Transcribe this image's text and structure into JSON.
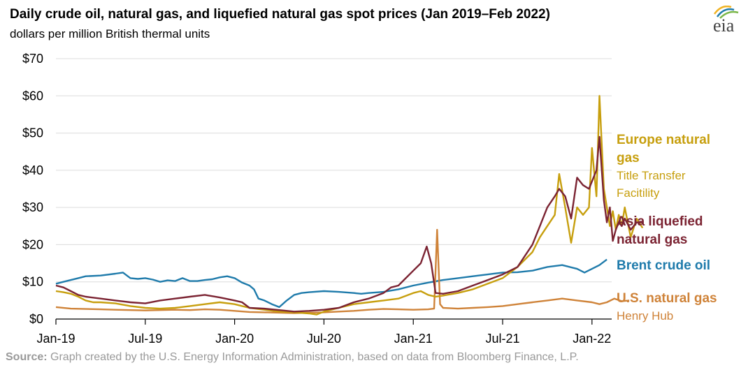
{
  "header": {
    "title": "Daily crude oil, natural gas, and liquefied natural gas spot prices (Jan 2019–Feb 2022)",
    "subtitle": "dollars per million British thermal units"
  },
  "logo": {
    "text": "eia",
    "icon": "eia-logo-icon"
  },
  "source": {
    "label": "Source:",
    "text": "Graph created by the U.S. Energy Information Administration, based on data from Bloomberg Finance, L.P."
  },
  "chart_data": {
    "type": "line",
    "title": "Daily crude oil, natural gas, and liquefied natural gas spot prices (Jan 2019–Feb 2022)",
    "ylabel": "dollars per million British thermal units",
    "xlim": [
      0,
      37.3
    ],
    "ylim": [
      0,
      70
    ],
    "y_ticks": [
      0,
      10,
      20,
      30,
      40,
      50,
      60,
      70
    ],
    "y_tick_labels": [
      "$0",
      "$10",
      "$20",
      "$30",
      "$40",
      "$50",
      "$60",
      "$70"
    ],
    "x_tick_positions": [
      0,
      6,
      12,
      18,
      24,
      30,
      36
    ],
    "x_tick_labels": [
      "Jan-19",
      "Jul-19",
      "Jan-20",
      "Jul-20",
      "Jan-21",
      "Jul-21",
      "Jan-22"
    ],
    "x_units": "months since Jan 2019",
    "grid": "horizontal",
    "series": [
      {
        "name": "Brent crude oil",
        "color": "#1f7bab",
        "labels": [
          "Brent crude oil"
        ],
        "points": [
          [
            0,
            9.5
          ],
          [
            0.5,
            10.0
          ],
          [
            1,
            10.5
          ],
          [
            1.5,
            11.0
          ],
          [
            2,
            11.5
          ],
          [
            3,
            11.7
          ],
          [
            4,
            12.2
          ],
          [
            4.5,
            12.5
          ],
          [
            5,
            11.0
          ],
          [
            5.5,
            10.8
          ],
          [
            6,
            11.0
          ],
          [
            6.5,
            10.6
          ],
          [
            7,
            10.0
          ],
          [
            7.5,
            10.4
          ],
          [
            8,
            10.2
          ],
          [
            8.5,
            11.0
          ],
          [
            9,
            10.2
          ],
          [
            9.5,
            10.2
          ],
          [
            10,
            10.5
          ],
          [
            10.5,
            10.7
          ],
          [
            11,
            11.2
          ],
          [
            11.5,
            11.5
          ],
          [
            12,
            11.0
          ],
          [
            12.5,
            9.8
          ],
          [
            13,
            9.0
          ],
          [
            13.3,
            8.0
          ],
          [
            13.6,
            5.5
          ],
          [
            14,
            5.0
          ],
          [
            14.5,
            4.0
          ],
          [
            15,
            3.2
          ],
          [
            15.5,
            5.0
          ],
          [
            16,
            6.5
          ],
          [
            16.5,
            7.0
          ],
          [
            17,
            7.2
          ],
          [
            18,
            7.5
          ],
          [
            19,
            7.3
          ],
          [
            20,
            7.0
          ],
          [
            20.5,
            6.8
          ],
          [
            21,
            7.0
          ],
          [
            22,
            7.3
          ],
          [
            23,
            8.0
          ],
          [
            24,
            9.0
          ],
          [
            25,
            9.8
          ],
          [
            26,
            10.5
          ],
          [
            27,
            11.0
          ],
          [
            28,
            11.5
          ],
          [
            29,
            12.0
          ],
          [
            30,
            12.5
          ],
          [
            31,
            12.6
          ],
          [
            32,
            13.0
          ],
          [
            33,
            14.0
          ],
          [
            34,
            14.5
          ],
          [
            35,
            13.5
          ],
          [
            35.5,
            12.5
          ],
          [
            36,
            13.5
          ],
          [
            36.5,
            14.5
          ],
          [
            37,
            16.0
          ]
        ]
      },
      {
        "name": "Europe natural gas",
        "color": "#c79f0e",
        "labels": [
          "Europe natural",
          "gas",
          "Title Transfer",
          "Facitility"
        ],
        "points": [
          [
            0,
            7.5
          ],
          [
            0.5,
            7.2
          ],
          [
            1,
            6.8
          ],
          [
            1.5,
            6.0
          ],
          [
            2,
            5.0
          ],
          [
            2.5,
            4.5
          ],
          [
            3,
            4.5
          ],
          [
            4,
            4.2
          ],
          [
            5,
            3.5
          ],
          [
            6,
            3.0
          ],
          [
            7,
            2.8
          ],
          [
            8,
            3.0
          ],
          [
            9,
            3.5
          ],
          [
            10,
            4.0
          ],
          [
            11,
            4.5
          ],
          [
            12,
            4.0
          ],
          [
            12.5,
            3.5
          ],
          [
            13,
            3.0
          ],
          [
            14,
            2.5
          ],
          [
            15,
            2.0
          ],
          [
            16,
            1.8
          ],
          [
            17,
            1.5
          ],
          [
            17.5,
            1.2
          ],
          [
            18,
            2.0
          ],
          [
            19,
            3.0
          ],
          [
            20,
            4.0
          ],
          [
            21,
            4.5
          ],
          [
            22,
            5.0
          ],
          [
            23,
            5.5
          ],
          [
            24,
            7.0
          ],
          [
            24.5,
            7.5
          ],
          [
            25,
            6.5
          ],
          [
            25.5,
            6.0
          ],
          [
            26,
            6.3
          ],
          [
            27,
            7.0
          ],
          [
            28,
            8.0
          ],
          [
            29,
            9.5
          ],
          [
            30,
            11.0
          ],
          [
            31,
            14.0
          ],
          [
            32,
            18.0
          ],
          [
            32.5,
            22.0
          ],
          [
            33,
            25.0
          ],
          [
            33.5,
            28.0
          ],
          [
            33.8,
            39.0
          ],
          [
            34.2,
            30.0
          ],
          [
            34.6,
            20.5
          ],
          [
            35,
            30.0
          ],
          [
            35.4,
            28.0
          ],
          [
            35.8,
            30.0
          ],
          [
            36,
            46.0
          ],
          [
            36.3,
            33.0
          ],
          [
            36.5,
            60.0
          ],
          [
            36.8,
            35.0
          ],
          [
            37,
            30.0
          ],
          [
            37.2,
            25.0
          ],
          [
            37.4,
            29.0
          ],
          [
            37.6,
            24.0
          ],
          [
            37.8,
            28.0
          ],
          [
            38,
            25.0
          ],
          [
            38.2,
            30.0
          ],
          [
            38.6,
            22.0
          ],
          [
            39,
            27.0
          ],
          [
            39.4,
            24.5
          ]
        ]
      },
      {
        "name": "Asia liquefied natural gas",
        "color": "#7b2332",
        "labels": [
          "Asia liquefied",
          "natural gas"
        ],
        "points": [
          [
            0,
            9.0
          ],
          [
            0.5,
            8.5
          ],
          [
            1,
            7.5
          ],
          [
            1.5,
            6.5
          ],
          [
            2,
            6.0
          ],
          [
            3,
            5.5
          ],
          [
            4,
            5.0
          ],
          [
            5,
            4.5
          ],
          [
            6,
            4.2
          ],
          [
            7,
            5.0
          ],
          [
            8,
            5.5
          ],
          [
            9,
            6.0
          ],
          [
            10,
            6.5
          ],
          [
            11,
            5.8
          ],
          [
            12,
            5.0
          ],
          [
            12.5,
            4.5
          ],
          [
            13,
            3.0
          ],
          [
            14,
            2.8
          ],
          [
            15,
            2.4
          ],
          [
            16,
            2.0
          ],
          [
            17,
            2.2
          ],
          [
            18,
            2.5
          ],
          [
            19,
            3.0
          ],
          [
            20,
            4.5
          ],
          [
            21,
            5.5
          ],
          [
            22,
            7.0
          ],
          [
            22.5,
            8.5
          ],
          [
            23,
            9.0
          ],
          [
            23.5,
            11.0
          ],
          [
            24,
            13.0
          ],
          [
            24.5,
            15.0
          ],
          [
            24.9,
            19.5
          ],
          [
            25.2,
            15.0
          ],
          [
            25.5,
            7.0
          ],
          [
            26,
            6.8
          ],
          [
            27,
            7.5
          ],
          [
            28,
            9.0
          ],
          [
            29,
            10.5
          ],
          [
            30,
            12.0
          ],
          [
            31,
            14.0
          ],
          [
            32,
            20.0
          ],
          [
            32.5,
            25.0
          ],
          [
            33,
            30.0
          ],
          [
            33.5,
            33.0
          ],
          [
            33.8,
            35.0
          ],
          [
            34.2,
            33.0
          ],
          [
            34.6,
            27.0
          ],
          [
            35,
            38.0
          ],
          [
            35.4,
            36.0
          ],
          [
            35.8,
            35.0
          ],
          [
            36,
            37.0
          ],
          [
            36.3,
            40.0
          ],
          [
            36.5,
            49.0
          ],
          [
            36.8,
            32.0
          ],
          [
            37,
            26.0
          ],
          [
            37.2,
            30.0
          ],
          [
            37.4,
            21.0
          ],
          [
            37.6,
            24.0
          ],
          [
            37.8,
            26.0
          ],
          [
            38,
            25.0
          ],
          [
            38.2,
            27.0
          ],
          [
            38.6,
            24.0
          ],
          [
            39,
            26.0
          ],
          [
            39.4,
            26.0
          ]
        ]
      },
      {
        "name": "U.S. natural gas",
        "color": "#cf8339",
        "labels": [
          "U.S. natural gas",
          "Henry Hub"
        ],
        "points": [
          [
            0,
            3.2
          ],
          [
            1,
            2.8
          ],
          [
            2,
            2.7
          ],
          [
            3,
            2.6
          ],
          [
            4,
            2.5
          ],
          [
            5,
            2.4
          ],
          [
            6,
            2.3
          ],
          [
            7,
            2.4
          ],
          [
            8,
            2.5
          ],
          [
            9,
            2.4
          ],
          [
            10,
            2.6
          ],
          [
            11,
            2.5
          ],
          [
            12,
            2.2
          ],
          [
            13,
            1.9
          ],
          [
            14,
            1.8
          ],
          [
            15,
            1.7
          ],
          [
            16,
            1.6
          ],
          [
            17,
            1.7
          ],
          [
            18,
            1.8
          ],
          [
            19,
            2.0
          ],
          [
            20,
            2.2
          ],
          [
            21,
            2.5
          ],
          [
            22,
            2.7
          ],
          [
            23,
            2.6
          ],
          [
            24,
            2.5
          ],
          [
            25,
            2.6
          ],
          [
            25.4,
            2.8
          ],
          [
            25.6,
            24.0
          ],
          [
            25.8,
            4.0
          ],
          [
            26,
            3.0
          ],
          [
            27,
            2.8
          ],
          [
            28,
            3.0
          ],
          [
            29,
            3.2
          ],
          [
            30,
            3.5
          ],
          [
            31,
            4.0
          ],
          [
            32,
            4.5
          ],
          [
            33,
            5.0
          ],
          [
            34,
            5.5
          ],
          [
            35,
            5.0
          ],
          [
            36,
            4.5
          ],
          [
            36.5,
            4.0
          ],
          [
            37,
            4.5
          ],
          [
            37.5,
            5.5
          ],
          [
            38,
            4.8
          ],
          [
            38.5,
            5.0
          ]
        ]
      }
    ]
  }
}
